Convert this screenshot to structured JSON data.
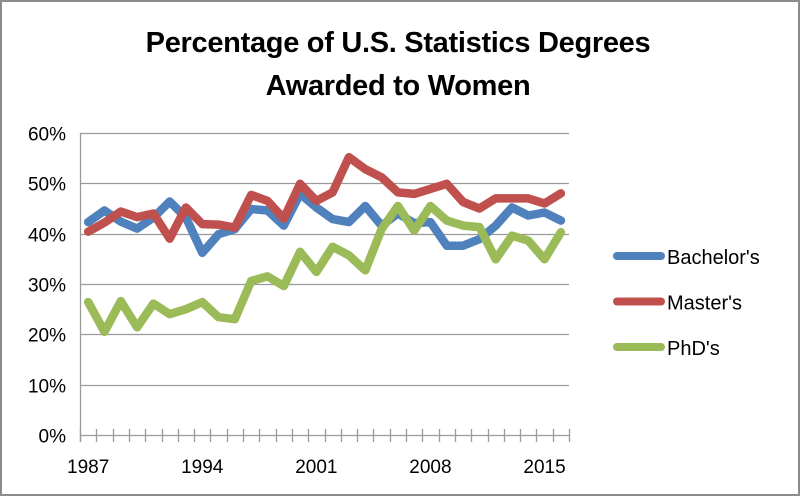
{
  "chart_data": {
    "type": "line",
    "title": "Percentage of U.S. Statistics Degrees Awarded to Women",
    "title_lines": [
      "Percentage of U.S. Statistics Degrees",
      "Awarded to Women"
    ],
    "xlabel": "",
    "ylabel": "",
    "x": [
      1987,
      1988,
      1989,
      1990,
      1991,
      1992,
      1993,
      1994,
      1995,
      1996,
      1997,
      1998,
      1999,
      2000,
      2001,
      2002,
      2003,
      2004,
      2005,
      2006,
      2007,
      2008,
      2009,
      2010,
      2011,
      2012,
      2013,
      2014,
      2015,
      2016
    ],
    "x_tick_labels": [
      "1987",
      "1994",
      "2001",
      "2008",
      "2015"
    ],
    "x_tick_label_years": [
      1987,
      1994,
      2001,
      2008,
      2015
    ],
    "ylim": [
      0,
      60
    ],
    "y_ticks": [
      0,
      10,
      20,
      30,
      40,
      50,
      60
    ],
    "y_tick_labels": [
      "0%",
      "10%",
      "20%",
      "30%",
      "40%",
      "50%",
      "60%"
    ],
    "grid": true,
    "legend_position": "right",
    "series": [
      {
        "name": "Bachelor's",
        "color": "#4f81bd",
        "values": [
          42.3,
          44.6,
          42.4,
          41.0,
          43.2,
          46.4,
          43.2,
          36.2,
          39.9,
          40.9,
          44.9,
          44.6,
          41.6,
          47.9,
          45.2,
          42.9,
          42.3,
          45.5,
          41.6,
          44.0,
          42.1,
          42.3,
          37.6,
          37.6,
          38.9,
          41.6,
          45.2,
          43.6,
          44.2,
          42.6
        ]
      },
      {
        "name": "Master's",
        "color": "#c0504d",
        "values": [
          40.4,
          42.2,
          44.4,
          43.3,
          44.0,
          39.0,
          45.2,
          41.9,
          41.8,
          41.2,
          47.7,
          46.5,
          43.0,
          49.9,
          46.5,
          48.2,
          55.2,
          52.8,
          51.2,
          48.2,
          47.9,
          48.9,
          49.9,
          46.3,
          45.0,
          47.0,
          47.0,
          47.0,
          46.0,
          48.0
        ]
      },
      {
        "name": "PhD's",
        "color": "#9bbb59",
        "values": [
          26.4,
          20.5,
          26.6,
          21.4,
          26.1,
          24.0,
          25.0,
          26.4,
          23.4,
          23.0,
          30.6,
          31.5,
          29.6,
          36.4,
          32.4,
          37.4,
          35.7,
          32.7,
          40.9,
          45.5,
          40.6,
          45.5,
          42.6,
          41.6,
          41.3,
          34.9,
          39.6,
          38.6,
          34.9,
          40.3
        ]
      }
    ]
  }
}
